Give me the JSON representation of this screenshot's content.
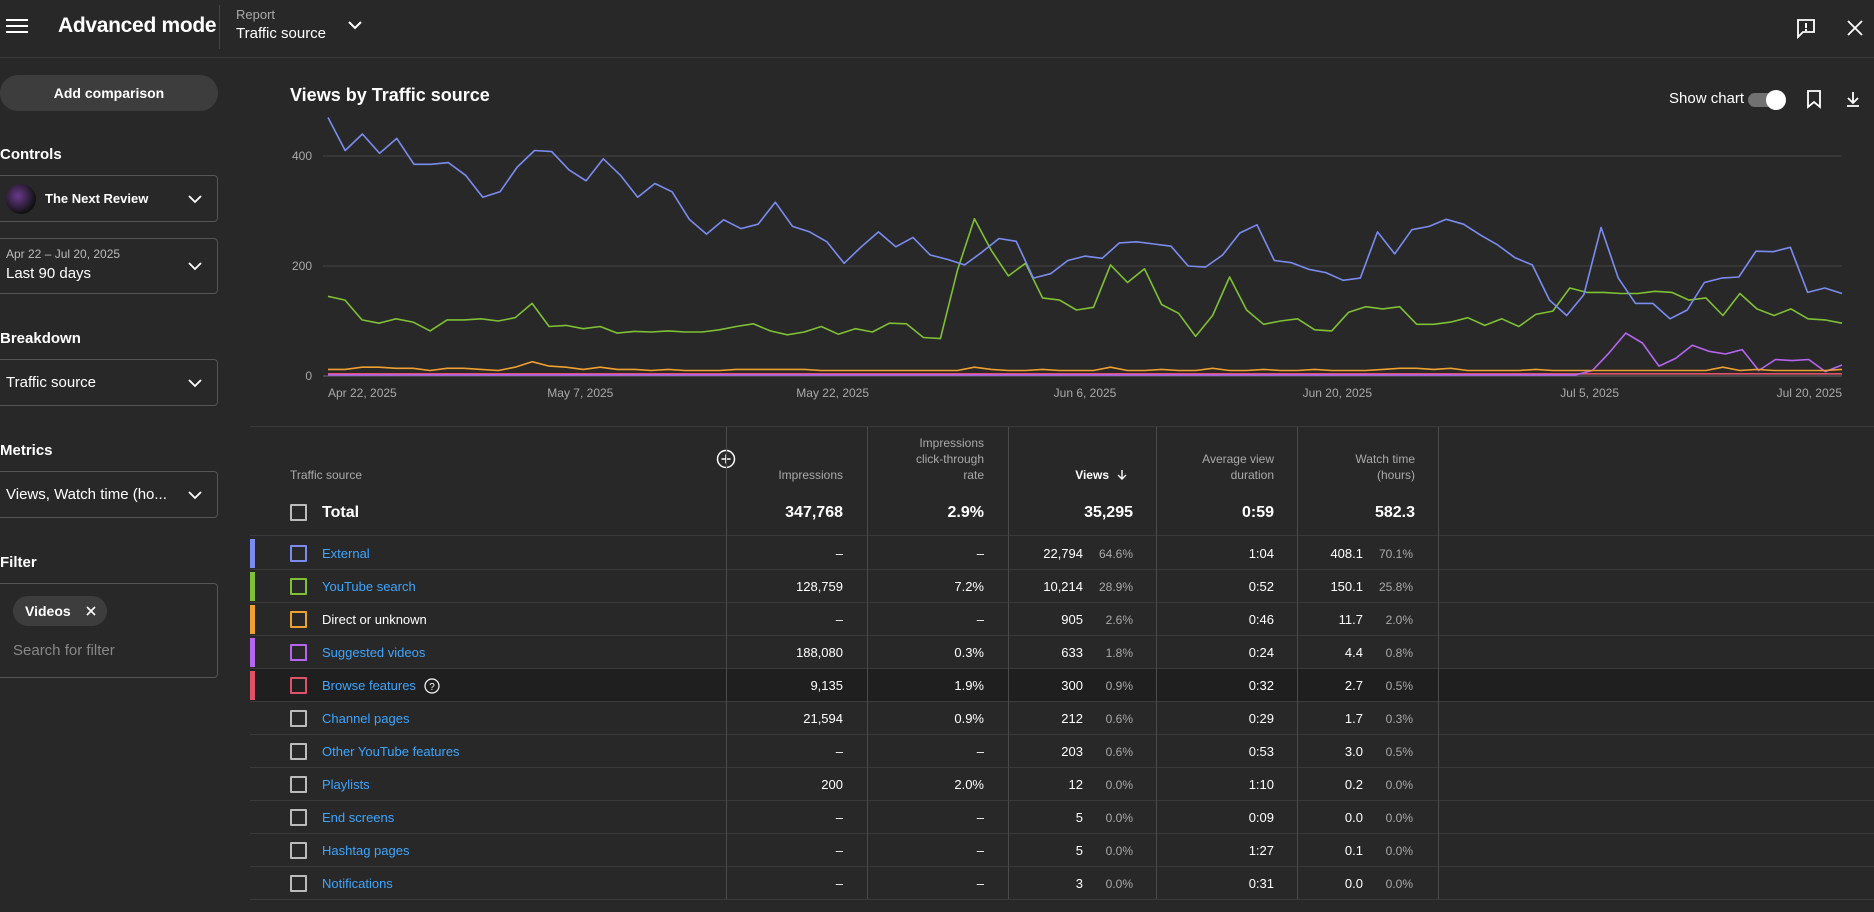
{
  "app": {
    "title": "Advanced mode",
    "report_label": "Report",
    "report_value": "Traffic source"
  },
  "sidebar": {
    "add_comparison": "Add comparison",
    "controls_title": "Controls",
    "channel_name": "The Next Review",
    "date_range": "Apr 22 – Jul 20, 2025",
    "date_preset": "Last 90 days",
    "breakdown_title": "Breakdown",
    "breakdown_value": "Traffic source",
    "metrics_title": "Metrics",
    "metrics_value": "Views, Watch time (ho...",
    "filter_title": "Filter",
    "filter_chip": "Videos",
    "filter_placeholder": "Search for filter"
  },
  "chart_header": {
    "title": "Views by Traffic source",
    "show_chart_label": "Show chart",
    "show_chart_on": true
  },
  "chart_data": {
    "type": "line",
    "title": "Views by Traffic source",
    "x_tick_labels": [
      "Apr 22, 2025",
      "May 7, 2025",
      "May 22, 2025",
      "Jun 6, 2025",
      "Jun 20, 2025",
      "Jul 5, 2025",
      "Jul 20, 2025"
    ],
    "y_ticks": [
      0,
      200,
      400
    ],
    "ylim": [
      0,
      480
    ],
    "grid": true,
    "x_start": "Apr 22, 2025",
    "x_end": "Jul 20, 2025",
    "series": [
      {
        "name": "External",
        "color": "#7b8cf0",
        "values": [
          470,
          410,
          440,
          405,
          432,
          385,
          385,
          388,
          365,
          325,
          335,
          380,
          410,
          408,
          375,
          355,
          395,
          365,
          325,
          350,
          335,
          285,
          258,
          284,
          268,
          276,
          316,
          272,
          262,
          244,
          205,
          235,
          262,
          235,
          252,
          220,
          212,
          202,
          225,
          250,
          245,
          178,
          186,
          210,
          218,
          214,
          242,
          244,
          240,
          236,
          200,
          198,
          220,
          260,
          275,
          210,
          206,
          194,
          188,
          174,
          178,
          262,
          222,
          266,
          272,
          285,
          276,
          256,
          238,
          215,
          202,
          138,
          110,
          148,
          270,
          178,
          132,
          132,
          104,
          120,
          170,
          178,
          180,
          227,
          226,
          234,
          152,
          160,
          150
        ]
      },
      {
        "name": "YouTube search",
        "color": "#7fc035",
        "values": [
          145,
          138,
          102,
          96,
          104,
          98,
          82,
          102,
          102,
          104,
          100,
          106,
          132,
          90,
          92,
          86,
          90,
          78,
          81,
          80,
          82,
          80,
          80,
          84,
          90,
          95,
          82,
          75,
          80,
          90,
          76,
          86,
          80,
          96,
          95,
          70,
          68,
          192,
          286,
          228,
          182,
          205,
          142,
          138,
          120,
          125,
          202,
          170,
          195,
          130,
          114,
          72,
          110,
          180,
          120,
          94,
          100,
          104,
          84,
          82,
          116,
          126,
          122,
          126,
          94,
          94,
          98,
          106,
          92,
          104,
          90,
          112,
          118,
          160,
          152,
          152,
          150,
          150,
          154,
          152,
          138,
          142,
          110,
          150,
          122,
          110,
          122,
          104,
          102,
          96
        ]
      },
      {
        "name": "Direct or unknown",
        "color": "#f0a030",
        "values": [
          12,
          12,
          16,
          16,
          14,
          14,
          10,
          14,
          14,
          12,
          10,
          16,
          26,
          18,
          16,
          12,
          16,
          12,
          12,
          10,
          12,
          10,
          10,
          10,
          12,
          12,
          12,
          12,
          12,
          10,
          10,
          10,
          10,
          10,
          10,
          10,
          10,
          10,
          16,
          12,
          10,
          10,
          12,
          10,
          10,
          10,
          16,
          10,
          10,
          12,
          10,
          10,
          14,
          10,
          10,
          12,
          10,
          10,
          12,
          10,
          10,
          10,
          12,
          14,
          14,
          12,
          14,
          10,
          10,
          10,
          10,
          12,
          10,
          10,
          10,
          10,
          10,
          10,
          10,
          10,
          10,
          10,
          16,
          10,
          12,
          10,
          10,
          10,
          10,
          12
        ]
      },
      {
        "name": "Suggested videos",
        "color": "#b565f0",
        "values": [
          2,
          2,
          2,
          2,
          2,
          2,
          2,
          2,
          2,
          2,
          2,
          2,
          2,
          2,
          2,
          2,
          2,
          2,
          2,
          2,
          2,
          2,
          2,
          2,
          2,
          2,
          2,
          2,
          2,
          2,
          2,
          2,
          2,
          2,
          2,
          2,
          2,
          2,
          2,
          2,
          2,
          2,
          2,
          2,
          2,
          2,
          2,
          2,
          2,
          2,
          2,
          2,
          2,
          2,
          2,
          2,
          2,
          2,
          2,
          2,
          2,
          2,
          2,
          2,
          2,
          2,
          2,
          2,
          2,
          2,
          2,
          2,
          2,
          2,
          2,
          2,
          10,
          42,
          78,
          60,
          18,
          32,
          56,
          45,
          40,
          48,
          10,
          30,
          28,
          30,
          8,
          20
        ]
      },
      {
        "name": "Browse features",
        "color": "#e05268",
        "values": [
          4,
          4,
          4,
          4,
          4,
          4,
          4,
          4,
          4,
          4,
          4,
          4,
          4,
          4,
          4,
          4,
          4,
          4,
          4,
          4,
          4,
          4,
          4,
          4,
          4,
          4,
          4,
          4,
          4,
          4,
          4,
          4,
          4,
          4,
          4,
          4,
          4,
          4,
          4,
          4,
          4,
          4,
          4,
          4,
          4,
          4,
          4,
          4,
          4,
          4,
          4,
          4,
          4,
          4,
          4,
          4,
          4,
          4,
          4,
          4,
          4,
          4,
          4,
          4,
          4,
          4,
          4,
          4,
          4,
          4,
          4,
          4,
          4,
          4,
          4,
          4,
          4,
          4,
          4,
          4,
          4,
          4,
          4,
          4,
          4,
          4,
          4,
          4,
          4,
          4
        ]
      }
    ]
  },
  "table": {
    "headers": {
      "source": "Traffic source",
      "impressions": "Impressions",
      "ctr_line1": "Impressions",
      "ctr_line2": "click-through",
      "ctr_line3": "rate",
      "views": "Views",
      "avd_line1": "Average view",
      "avd_line2": "duration",
      "watch_line1": "Watch time",
      "watch_line2": "(hours)"
    },
    "total": {
      "label": "Total",
      "impressions": "347,768",
      "ctr": "2.9%",
      "views": "35,295",
      "avd": "0:59",
      "watch": "582.3"
    },
    "rows": [
      {
        "source": "External",
        "link": true,
        "color": "#7b8cf0",
        "impressions": "–",
        "ctr": "–",
        "views": "22,794",
        "views_pct": "64.6%",
        "avd": "1:04",
        "watch": "408.1",
        "watch_pct": "70.1%"
      },
      {
        "source": "YouTube search",
        "link": true,
        "color": "#7fc035",
        "impressions": "128,759",
        "ctr": "7.2%",
        "views": "10,214",
        "views_pct": "28.9%",
        "avd": "0:52",
        "watch": "150.1",
        "watch_pct": "25.8%"
      },
      {
        "source": "Direct or unknown",
        "link": false,
        "color": "#f0a030",
        "impressions": "–",
        "ctr": "–",
        "views": "905",
        "views_pct": "2.6%",
        "avd": "0:46",
        "watch": "11.7",
        "watch_pct": "2.0%"
      },
      {
        "source": "Suggested videos",
        "link": true,
        "color": "#b565f0",
        "impressions": "188,080",
        "ctr": "0.3%",
        "views": "633",
        "views_pct": "1.8%",
        "avd": "0:24",
        "watch": "4.4",
        "watch_pct": "0.8%"
      },
      {
        "source": "Browse features",
        "link": true,
        "color": "#e05268",
        "impressions": "9,135",
        "ctr": "1.9%",
        "views": "300",
        "views_pct": "0.9%",
        "avd": "0:32",
        "watch": "2.7",
        "watch_pct": "0.5%"
      },
      {
        "source": "Channel pages",
        "link": true,
        "color": "",
        "impressions": "21,594",
        "ctr": "0.9%",
        "views": "212",
        "views_pct": "0.6%",
        "avd": "0:29",
        "watch": "1.7",
        "watch_pct": "0.3%"
      },
      {
        "source": "Other YouTube features",
        "link": true,
        "color": "",
        "impressions": "–",
        "ctr": "–",
        "views": "203",
        "views_pct": "0.6%",
        "avd": "0:53",
        "watch": "3.0",
        "watch_pct": "0.5%"
      },
      {
        "source": "Playlists",
        "link": true,
        "color": "",
        "impressions": "200",
        "ctr": "2.0%",
        "views": "12",
        "views_pct": "0.0%",
        "avd": "1:10",
        "watch": "0.2",
        "watch_pct": "0.0%"
      },
      {
        "source": "End screens",
        "link": true,
        "color": "",
        "impressions": "–",
        "ctr": "–",
        "views": "5",
        "views_pct": "0.0%",
        "avd": "0:09",
        "watch": "0.0",
        "watch_pct": "0.0%"
      },
      {
        "source": "Hashtag pages",
        "link": true,
        "color": "",
        "impressions": "–",
        "ctr": "–",
        "views": "5",
        "views_pct": "0.0%",
        "avd": "1:27",
        "watch": "0.1",
        "watch_pct": "0.0%"
      },
      {
        "source": "Notifications",
        "link": true,
        "color": "",
        "impressions": "–",
        "ctr": "–",
        "views": "3",
        "views_pct": "0.0%",
        "avd": "0:31",
        "watch": "0.0",
        "watch_pct": "0.0%"
      }
    ]
  }
}
